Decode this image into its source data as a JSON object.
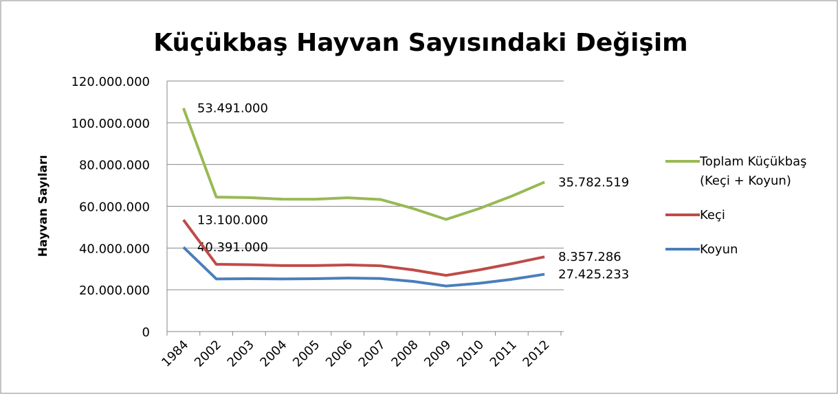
{
  "chart_data": {
    "type": "line",
    "stacked": true,
    "title": "Küçükbaş Hayvan Sayısındaki Değişim",
    "y_label": "Hayvan Sayıları",
    "categories": [
      "1984",
      "2002",
      "2003",
      "2004",
      "2005",
      "2006",
      "2007",
      "2008",
      "2009",
      "2010",
      "2011",
      "2012"
    ],
    "series": [
      {
        "name": "Koyun",
        "color": "#4a7ebb",
        "values": [
          40391000,
          25200000,
          25300000,
          25200000,
          25300000,
          25600000,
          25400000,
          24000000,
          21800000,
          23100000,
          25000000,
          27425233
        ],
        "value_labels": [
          "40.391.000",
          null,
          null,
          null,
          null,
          null,
          null,
          null,
          null,
          null,
          null,
          "27.425.233"
        ]
      },
      {
        "name": "Keçi",
        "color": "#be4b48",
        "values": [
          13100000,
          7000000,
          6700000,
          6400000,
          6300000,
          6300000,
          6100000,
          5500000,
          5100000,
          6400000,
          7500000,
          8357286
        ],
        "value_labels": [
          "13.100.000",
          null,
          null,
          null,
          null,
          null,
          null,
          null,
          null,
          null,
          null,
          "8.357.286"
        ]
      },
      {
        "name": "Toplam Küçükbaş (Keçi + Koyun)",
        "color": "#98b954",
        "values": [
          53491000,
          32200000,
          32150000,
          31800000,
          31750000,
          32150000,
          31750000,
          29400000,
          26800000,
          29350000,
          32350000,
          35782519
        ],
        "value_labels": [
          "53.491.000",
          null,
          null,
          null,
          null,
          null,
          null,
          null,
          null,
          null,
          null,
          "35.782.519"
        ]
      }
    ],
    "ylim": [
      0,
      120000000
    ],
    "yticks": [
      0,
      {
        "value": 20000000,
        "label": "20.000.000"
      },
      {
        "value": 40000000,
        "label": "40.000.000"
      },
      {
        "value": 60000000,
        "label": "60.000.000"
      },
      {
        "value": 80000000,
        "label": "80.000.000"
      },
      {
        "value": 100000000,
        "label": "100.000.000"
      },
      {
        "value": 120000000,
        "label": "120.000.000"
      }
    ],
    "grid": true,
    "legend": "right"
  }
}
